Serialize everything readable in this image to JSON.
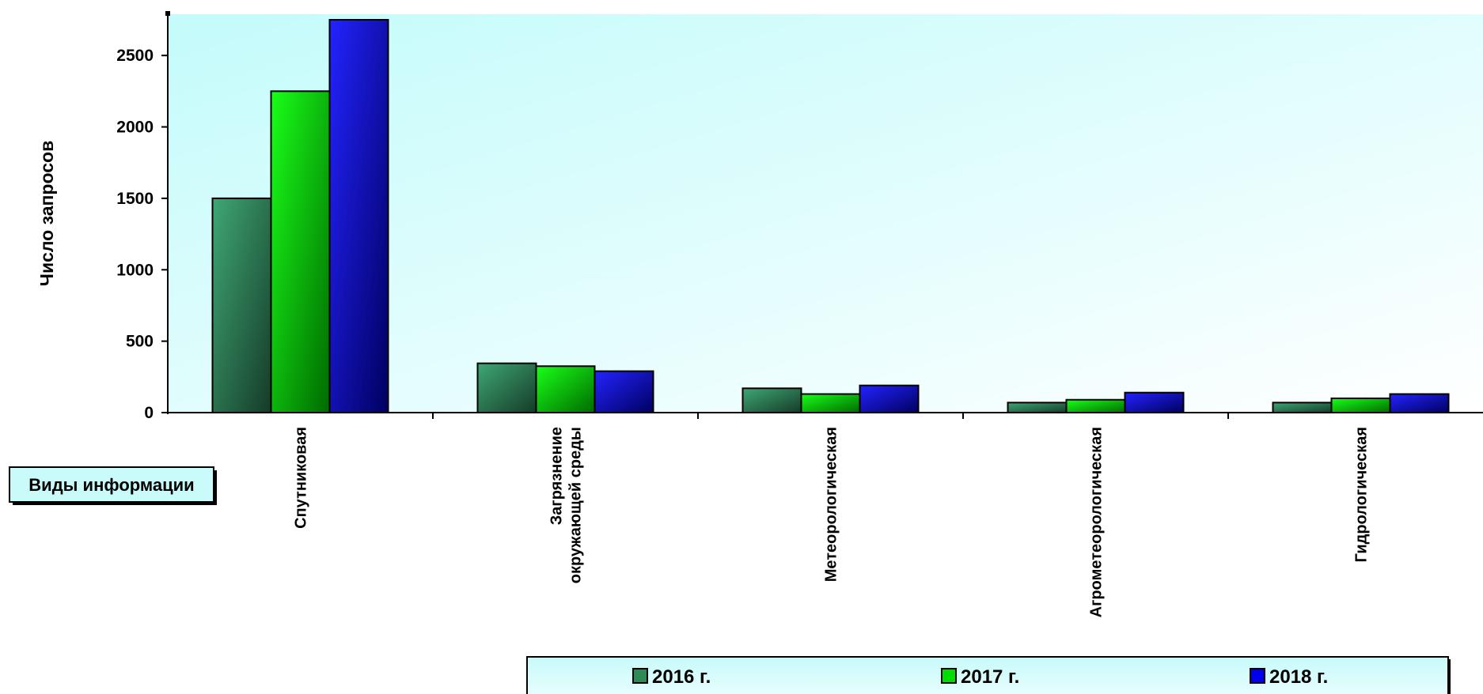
{
  "chart_data": {
    "type": "bar",
    "categories": [
      [
        "Спутниковая"
      ],
      [
        "Загрязнение",
        "окружающей среды"
      ],
      [
        "Метеорологическая"
      ],
      [
        "Агрометеорологическая"
      ],
      [
        "Гидрологическая"
      ]
    ],
    "series": [
      {
        "name": "2016 г.",
        "values": [
          1500,
          345,
          170,
          70,
          70
        ],
        "color": "#2e8b57"
      },
      {
        "name": "2017 г.",
        "values": [
          2250,
          325,
          130,
          90,
          100
        ],
        "color": "#00dd00"
      },
      {
        "name": "2018 г.",
        "values": [
          2750,
          290,
          190,
          140,
          130
        ],
        "color": "#0000ee"
      }
    ],
    "ylabel": "Число запросов",
    "xlabel": "Виды информации",
    "ylim": [
      0,
      2750
    ],
    "yticks": [
      0,
      500,
      1000,
      1500,
      2000,
      2500
    ],
    "legend_position": "bottom",
    "background": "gradient light cyan to white",
    "grid": false
  }
}
